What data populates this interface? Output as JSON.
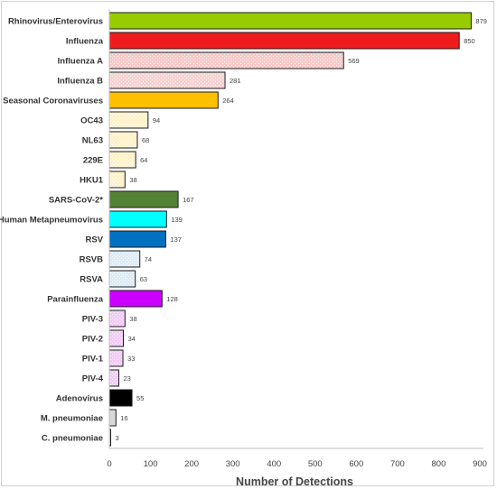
{
  "chart_data": {
    "type": "bar",
    "orientation": "horizontal",
    "xlabel": "Number of Detections",
    "xlim": [
      0,
      900
    ],
    "xticks": [
      0,
      100,
      200,
      300,
      400,
      500,
      600,
      700,
      800,
      900
    ],
    "grid": false,
    "categories": [
      "Rhinovirus/Enterovirus",
      "Influenza",
      "Influenza A",
      "Influenza B",
      "Seasonal Coronaviruses",
      "OC43",
      "NL63",
      "229E",
      "HKU1",
      "SARS-CoV-2*",
      "Human Metapneumovirus",
      "RSV",
      "RSVB",
      "RSVA",
      "Parainfluenza",
      "PIV-3",
      "PIV-2",
      "PIV-1",
      "PIV-4",
      "Adenovirus",
      "M. pneumoniae",
      "C. pneumoniae"
    ],
    "values": [
      879,
      850,
      569,
      281,
      264,
      94,
      68,
      64,
      38,
      167,
      139,
      137,
      74,
      63,
      128,
      38,
      34,
      33,
      23,
      55,
      16,
      3
    ],
    "colors": [
      "#99cc00",
      "#ee1c1c",
      "#f7c9c9",
      "#f7d2d2",
      "#ffc000",
      "#fff2cc",
      "#fff2cc",
      "#fff2cc",
      "#fff2cc",
      "#548235",
      "#00ffff",
      "#0070c0",
      "#ddebf7",
      "#ddebf7",
      "#cc00ff",
      "#f2ccf7",
      "#f2ccf7",
      "#f2ccf7",
      "#f2ccf7",
      "#000000",
      "#d9d9d9",
      "#d9d9d9"
    ],
    "patterned": [
      false,
      false,
      true,
      true,
      false,
      true,
      true,
      true,
      true,
      false,
      false,
      false,
      true,
      true,
      false,
      true,
      true,
      true,
      true,
      false,
      false,
      false
    ]
  }
}
